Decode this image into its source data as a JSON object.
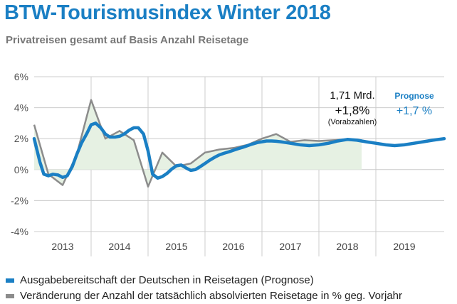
{
  "title": "BTW-Tourismusindex Winter 2018",
  "subtitle": "Privatreisen gesamt auf Basis Anzahl Reisetage",
  "colors": {
    "forecast": "#1a7fc4",
    "actual": "#8c8c8c",
    "fill": "#e6f1e3",
    "grid": "#cccccc",
    "title": "#1a7fc4"
  },
  "annotations": {
    "value_amount": "1,71 Mrd.",
    "value_change": "+1,8%",
    "value_note": "(Vorabzahlen)",
    "forecast_label": "Prognose",
    "forecast_value": "+1,7 %"
  },
  "legend": [
    {
      "label": "Ausgabebereitschaft der Deutschen in Reisetagen (Prognose)",
      "color": "#1a7fc4"
    },
    {
      "label": "Veränderung der Anzahl der tatsächlich absolvierten Reisetage in % geg. Vorjahr",
      "color": "#8c8c8c"
    }
  ],
  "chart_data": {
    "type": "line",
    "ylim": [
      -4,
      6
    ],
    "yticks": [
      "-4%",
      "-2%",
      "0%",
      "2%",
      "4%",
      "6%"
    ],
    "xlim": [
      2012.5,
      2019.7
    ],
    "xticks": [
      "2013",
      "2014",
      "2015",
      "2016",
      "2017",
      "2018",
      "2019"
    ],
    "grid": true,
    "legend_position": "bottom",
    "series": [
      {
        "name": "Ausgabebereitschaft der Deutschen in Reisetagen (Prognose)",
        "x": [
          2012.5,
          2012.6,
          2012.67,
          2012.75,
          2012.83,
          2012.92,
          2013.0,
          2013.08,
          2013.17,
          2013.25,
          2013.33,
          2013.42,
          2013.5,
          2013.58,
          2013.67,
          2013.75,
          2013.83,
          2013.92,
          2014.0,
          2014.08,
          2014.17,
          2014.25,
          2014.33,
          2014.42,
          2014.5,
          2014.58,
          2014.67,
          2014.75,
          2014.83,
          2014.92,
          2015.0,
          2015.08,
          2015.17,
          2015.25,
          2015.33,
          2015.42,
          2015.5,
          2015.58,
          2015.67,
          2015.75,
          2015.83,
          2015.92,
          2016.0,
          2016.08,
          2016.17,
          2016.25,
          2016.33,
          2016.42,
          2016.5,
          2016.58,
          2016.67,
          2016.75,
          2016.83,
          2016.92,
          2017.0,
          2017.17,
          2017.33,
          2017.5,
          2017.67,
          2017.83,
          2018.0,
          2018.17,
          2018.33,
          2018.5,
          2018.67,
          2018.83,
          2019.0,
          2019.17,
          2019.33,
          2019.5,
          2019.7
        ],
        "y": [
          2.0,
          0.5,
          -0.3,
          -0.4,
          -0.3,
          -0.35,
          -0.5,
          -0.4,
          0.2,
          1.0,
          1.7,
          2.3,
          2.9,
          3.0,
          2.7,
          2.3,
          2.1,
          2.1,
          2.15,
          2.3,
          2.55,
          2.7,
          2.7,
          2.3,
          1.2,
          -0.3,
          -0.55,
          -0.45,
          -0.25,
          0.05,
          0.25,
          0.3,
          0.1,
          -0.05,
          0.0,
          0.2,
          0.4,
          0.6,
          0.8,
          0.95,
          1.05,
          1.15,
          1.25,
          1.35,
          1.45,
          1.55,
          1.65,
          1.75,
          1.8,
          1.85,
          1.85,
          1.83,
          1.8,
          1.75,
          1.7,
          1.6,
          1.55,
          1.6,
          1.7,
          1.85,
          1.95,
          1.9,
          1.8,
          1.7,
          1.6,
          1.55,
          1.6,
          1.7,
          1.8,
          1.9,
          2.0
        ]
      },
      {
        "name": "Veränderung der Anzahl der tatsächlich absolvierten Reisetage in % geg. Vorjahr",
        "x": [
          2012.5,
          2012.75,
          2013.0,
          2013.25,
          2013.5,
          2013.75,
          2014.0,
          2014.25,
          2014.5,
          2014.75,
          2015.0,
          2015.25,
          2015.5,
          2015.75,
          2016.0,
          2016.25,
          2016.5,
          2016.75,
          2017.0,
          2017.25,
          2017.5,
          2017.75,
          2018.0,
          2018.25
        ],
        "y": [
          2.9,
          -0.3,
          -1.0,
          1.0,
          4.5,
          2.0,
          2.5,
          1.9,
          -1.1,
          1.1,
          0.2,
          0.4,
          1.1,
          1.3,
          1.4,
          1.6,
          2.0,
          2.3,
          1.8,
          1.9,
          1.85,
          1.9,
          1.95,
          1.9
        ]
      }
    ]
  }
}
